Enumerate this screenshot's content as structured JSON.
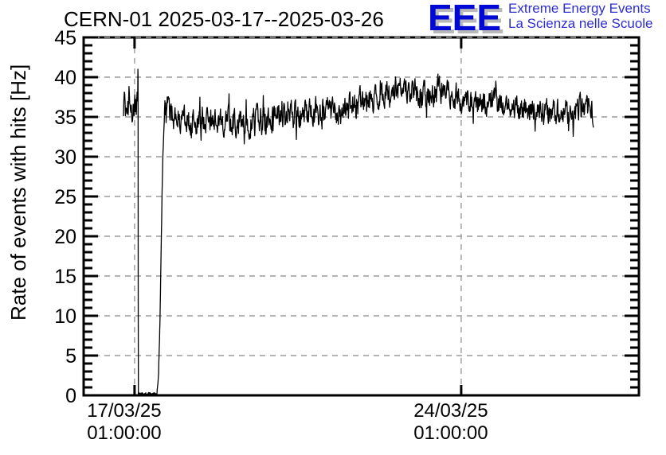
{
  "chart_data": {
    "type": "line",
    "title": "CERN-01 2025-03-17--2025-03-26",
    "ylabel": "Rate of events with hits [Hz]",
    "xlabel": "",
    "ylim": [
      0,
      45
    ],
    "ytick_step": 5,
    "yminor_step": 1,
    "yticks": [
      0,
      5,
      10,
      15,
      20,
      25,
      30,
      35,
      40,
      45
    ],
    "xlim_hours": [
      -26.2,
      259.4
    ],
    "xticks": [
      {
        "hours": 0,
        "date": "17/03/25",
        "time": "01:00:00"
      },
      {
        "hours": 168,
        "date": "24/03/25",
        "time": "01:00:00"
      }
    ],
    "grid": true,
    "grid_color": "#9a9a9a",
    "line_color": "#000000",
    "frame_color": "#000000",
    "series": [
      {
        "name": "rate-of-events-with-hits",
        "data_start_hours": -5.7,
        "data_end_hours": 236,
        "baseline_profile_hours_hz_spread": [
          [
            -5.7,
            36.4,
            1.6
          ],
          [
            -2.0,
            36.2,
            1.6
          ],
          [
            1.0,
            36.4,
            1.6
          ],
          [
            15.4,
            35.3,
            1.5
          ],
          [
            16.5,
            36.2,
            1.8
          ],
          [
            20,
            34.9,
            1.6
          ],
          [
            30,
            34.5,
            1.6
          ],
          [
            45,
            34.4,
            1.6
          ],
          [
            60,
            34.6,
            1.7
          ],
          [
            75,
            34.9,
            1.7
          ],
          [
            90,
            35.3,
            1.7
          ],
          [
            105,
            36.0,
            1.7
          ],
          [
            118,
            36.8,
            1.6
          ],
          [
            128,
            37.8,
            1.5
          ],
          [
            136,
            38.6,
            1.5
          ],
          [
            143,
            38.0,
            1.5
          ],
          [
            150,
            37.5,
            1.6
          ],
          [
            158,
            38.1,
            1.6
          ],
          [
            165,
            37.7,
            1.5
          ],
          [
            168,
            37.3,
            1.5
          ],
          [
            180,
            36.8,
            1.5
          ],
          [
            192,
            36.4,
            1.5
          ],
          [
            205,
            35.9,
            1.5
          ],
          [
            215,
            35.6,
            1.5
          ],
          [
            225,
            35.7,
            1.5
          ],
          [
            232,
            36.4,
            1.5
          ],
          [
            236,
            35.7,
            1.5
          ]
        ],
        "events": {
          "spike": {
            "hours": 1.7,
            "value_hz": 41
          },
          "dropout": {
            "from_hours": 1.9,
            "to_hours": 11.5,
            "level_hz": 0.2
          },
          "recovery_ramp": {
            "from_hours": 11.5,
            "to_hours": 15.4,
            "shape_hours_hz": [
              [
                11.5,
                0.3
              ],
              [
                12.3,
                2.5
              ],
              [
                13.0,
                8.5
              ],
              [
                13.5,
                16
              ],
              [
                14.0,
                23.5
              ],
              [
                14.5,
                29.5
              ],
              [
                15.0,
                33.0
              ],
              [
                15.4,
                35.3
              ]
            ]
          }
        }
      }
    ]
  },
  "logo": {
    "text": "EEE",
    "line1": "Extreme Energy Events",
    "line2": "La Scienza nelle Scuole",
    "eee_color": "#0008d6",
    "text_color": "#2d2dd0",
    "shadow_color": "#b9b9b9"
  }
}
